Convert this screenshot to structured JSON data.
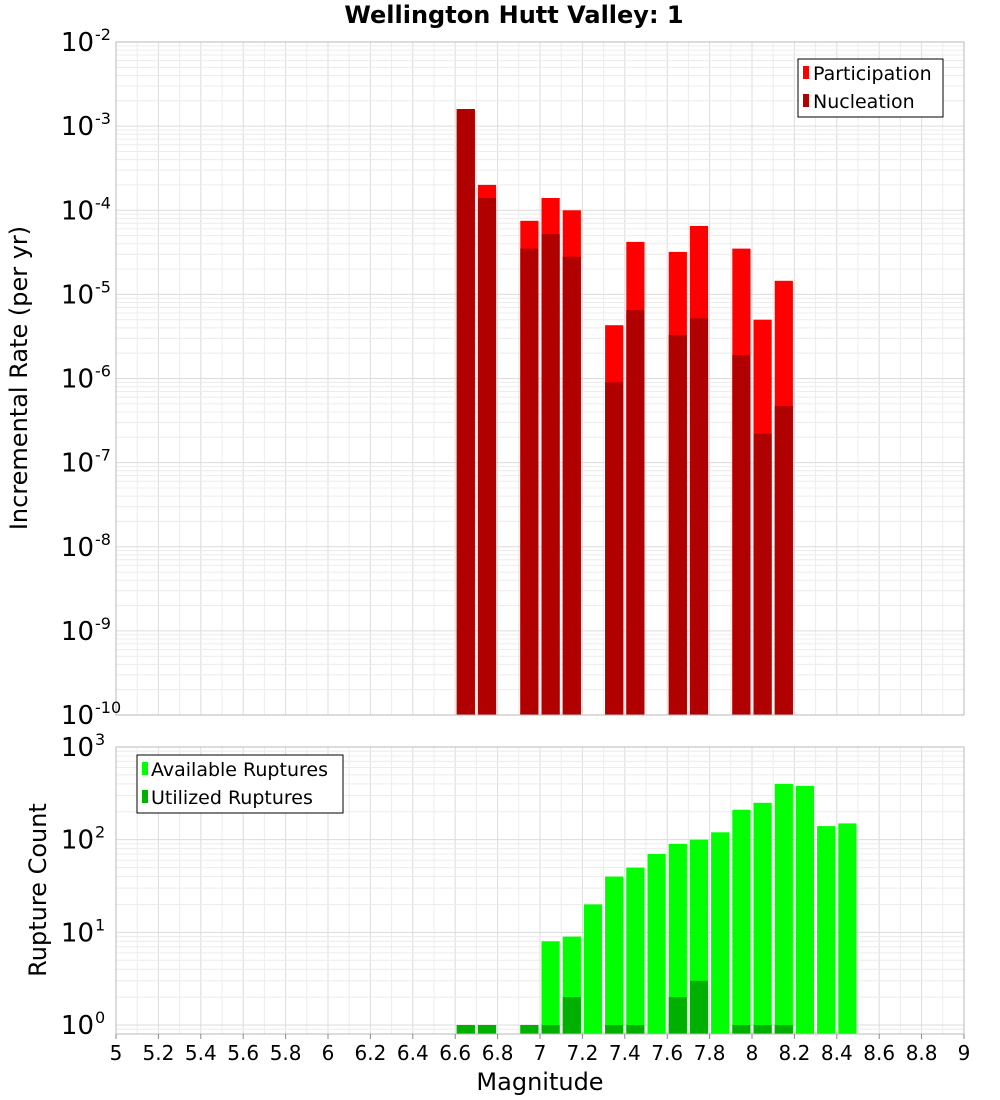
{
  "chart_data": [
    {
      "type": "bar",
      "title": "Wellington Hutt Valley: 1",
      "ylabel": "Incremental Rate (per yr)",
      "xlabel": "",
      "yscale": "log",
      "ylim": [
        1e-10,
        0.01
      ],
      "xlim": [
        5,
        9
      ],
      "legend_position": "top-right",
      "ytick_labels": [
        {
          "base": "10",
          "exp": "-10"
        },
        {
          "base": "10",
          "exp": "-9"
        },
        {
          "base": "10",
          "exp": "-8"
        },
        {
          "base": "10",
          "exp": "-7"
        },
        {
          "base": "10",
          "exp": "-6"
        },
        {
          "base": "10",
          "exp": "-5"
        },
        {
          "base": "10",
          "exp": "-4"
        },
        {
          "base": "10",
          "exp": "-3"
        },
        {
          "base": "10",
          "exp": "-2"
        }
      ],
      "x": [
        6.65,
        6.75,
        6.95,
        7.05,
        7.15,
        7.35,
        7.45,
        7.65,
        7.75,
        7.95,
        8.05,
        8.15
      ],
      "series": [
        {
          "name": "Participation",
          "color": "#ff0000",
          "values": [
            0.0016,
            0.0002,
            7.5e-05,
            0.00014,
            0.0001,
            4.3e-06,
            4.2e-05,
            3.2e-05,
            6.5e-05,
            3.5e-05,
            5e-06,
            1.45e-05
          ]
        },
        {
          "name": "Nucleation",
          "color": "#b00000",
          "values": [
            0.0016,
            0.00014,
            3.5e-05,
            5.2e-05,
            2.8e-05,
            9e-07,
            6.5e-06,
            3.3e-06,
            5.2e-06,
            1.9e-06,
            2.2e-07,
            4.7e-07
          ]
        }
      ]
    },
    {
      "type": "bar",
      "title": "",
      "ylabel": "Rupture Count",
      "xlabel": "Magnitude",
      "yscale": "log",
      "ylim": [
        0.8,
        1000
      ],
      "xlim": [
        5,
        9
      ],
      "legend_position": "top-left",
      "ytick_labels": [
        {
          "base": "10",
          "exp": "0"
        },
        {
          "base": "10",
          "exp": "1"
        },
        {
          "base": "10",
          "exp": "2"
        },
        {
          "base": "10",
          "exp": "3"
        }
      ],
      "xtick_labels": [
        "5",
        "5.2",
        "5.4",
        "5.6",
        "5.8",
        "6",
        "6.2",
        "6.4",
        "6.6",
        "6.8",
        "7",
        "7.2",
        "7.4",
        "7.6",
        "7.8",
        "8",
        "8.2",
        "8.4",
        "8.6",
        "8.8",
        "9"
      ],
      "series": [
        {
          "name": "Available Ruptures",
          "color": "#00ff00",
          "x": [
            6.65,
            6.75,
            6.95,
            7.05,
            7.15,
            7.25,
            7.35,
            7.45,
            7.55,
            7.65,
            7.75,
            7.85,
            7.95,
            8.05,
            8.15,
            8.25,
            8.35,
            8.45
          ],
          "values": [
            1,
            1,
            1,
            8,
            9,
            20,
            40,
            50,
            70,
            90,
            100,
            120,
            210,
            250,
            400,
            380,
            140,
            150
          ]
        },
        {
          "name": "Utilized Ruptures",
          "color": "#00b000",
          "x": [
            6.65,
            6.75,
            6.95,
            7.05,
            7.15,
            7.35,
            7.45,
            7.65,
            7.75,
            7.95,
            8.05,
            8.15
          ],
          "values": [
            1,
            1,
            1,
            1,
            2,
            1,
            1,
            2,
            3,
            1,
            1,
            1
          ]
        }
      ]
    }
  ]
}
